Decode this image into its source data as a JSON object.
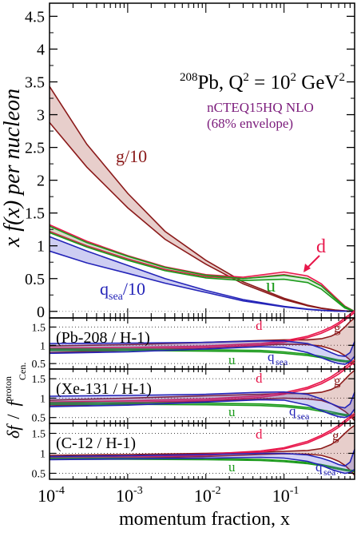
{
  "chart_data": {
    "type": "line",
    "xlabel": "momentum fraction, x",
    "x_scale": "log",
    "xlim": [
      0.0001,
      0.8
    ],
    "x_ticks": [
      {
        "value": 0.0001,
        "base": "10",
        "exp": "-4"
      },
      {
        "value": 0.001,
        "base": "10",
        "exp": "-3"
      },
      {
        "value": 0.01,
        "base": "10",
        "exp": "-2"
      },
      {
        "value": 0.1,
        "base": "10",
        "exp": "-1"
      }
    ],
    "main": {
      "ylabel": "x f(x) per nucleon",
      "ylim": [
        -0.1,
        4.7
      ],
      "y_ticks": [
        "0",
        "0.5",
        "1",
        "1.5",
        "2",
        "2.5",
        "3",
        "3.5",
        "4",
        "4.5"
      ],
      "title": {
        "prefix": "208",
        "pb": "Pb, Q",
        "q2": "2",
        "eq": " = 10",
        "p2": "2",
        "unit": " GeV",
        "u2": "2"
      },
      "subtitle1": "nCTEQ15HQ NLO",
      "subtitle2": "(68% envelope)",
      "labels": {
        "gluon": "g/10",
        "d": "d",
        "u": "u",
        "qsea_q": "q",
        "qsea_sub": "sea",
        "qsea_rest": "/10"
      },
      "series": [
        {
          "key": "g10",
          "color": "#8b1a1a",
          "fill": "rgba(170,80,70,0.28)",
          "x": [
            0.0001,
            0.0003,
            0.001,
            0.003,
            0.01,
            0.03,
            0.1,
            0.2,
            0.3,
            0.45,
            0.6,
            0.8
          ],
          "upper": [
            3.43,
            2.55,
            1.8,
            1.22,
            0.78,
            0.45,
            0.2,
            0.095,
            0.05,
            0.02,
            0.008,
            0.0
          ],
          "lower": [
            2.88,
            2.2,
            1.58,
            1.1,
            0.72,
            0.42,
            0.18,
            0.085,
            0.045,
            0.018,
            0.006,
            0.0
          ]
        },
        {
          "key": "d",
          "color": "#e8174b",
          "fill": "rgba(232,23,75,0.12)",
          "x": [
            0.0001,
            0.0003,
            0.001,
            0.003,
            0.01,
            0.03,
            0.1,
            0.2,
            0.3,
            0.45,
            0.6,
            0.8
          ],
          "upper": [
            1.32,
            1.07,
            0.85,
            0.68,
            0.56,
            0.52,
            0.6,
            0.54,
            0.42,
            0.22,
            0.08,
            0.0
          ],
          "lower": [
            1.22,
            1.0,
            0.8,
            0.64,
            0.53,
            0.5,
            0.56,
            0.5,
            0.39,
            0.2,
            0.07,
            0.0
          ]
        },
        {
          "key": "u",
          "color": "#1a9a1a",
          "fill": "rgba(26,154,26,0.15)",
          "x": [
            0.0001,
            0.0003,
            0.001,
            0.003,
            0.01,
            0.03,
            0.1,
            0.2,
            0.3,
            0.45,
            0.6,
            0.8
          ],
          "upper": [
            1.3,
            1.05,
            0.84,
            0.67,
            0.55,
            0.5,
            0.55,
            0.5,
            0.39,
            0.2,
            0.07,
            0.0
          ],
          "lower": [
            1.2,
            0.98,
            0.78,
            0.62,
            0.51,
            0.47,
            0.49,
            0.44,
            0.34,
            0.17,
            0.05,
            0.0
          ]
        },
        {
          "key": "qsea10",
          "color": "#2424b8",
          "fill": "rgba(80,80,210,0.28)",
          "x": [
            0.0001,
            0.0003,
            0.001,
            0.003,
            0.01,
            0.03,
            0.1,
            0.2,
            0.3,
            0.45,
            0.6,
            0.8
          ],
          "upper": [
            1.14,
            0.92,
            0.7,
            0.5,
            0.32,
            0.18,
            0.075,
            0.035,
            0.018,
            0.006,
            0.002,
            0.0
          ],
          "lower": [
            0.92,
            0.74,
            0.58,
            0.43,
            0.29,
            0.16,
            0.068,
            0.03,
            0.015,
            0.005,
            0.001,
            0.0
          ]
        }
      ]
    },
    "ratio": {
      "ylabel_a": "δf",
      "ylabel_sep": "/",
      "ylabel_b": "f",
      "ylabel_b_sup": "proton",
      "ylabel_b_sub": "Cen.",
      "ylim": [
        0.35,
        1.75
      ],
      "y_ticks": [
        "0.5",
        "1",
        "1.5"
      ],
      "dotted_lines": [
        0.5,
        1.0,
        1.5
      ],
      "panels": [
        {
          "label": "(Pb-208 / H-1)",
          "text": {
            "d": "d",
            "g": "g",
            "u": "u",
            "q": "q",
            "sea": "sea"
          },
          "series": [
            {
              "key": "g",
              "color": "#8b1a1a",
              "fill": "rgba(170,80,70,0.28)",
              "x": [
                0.0001,
                0.001,
                0.01,
                0.05,
                0.1,
                0.2,
                0.3,
                0.4,
                0.5,
                0.6,
                0.7,
                0.8
              ],
              "upper": [
                0.98,
                1.02,
                1.08,
                1.13,
                1.15,
                1.15,
                1.18,
                1.25,
                1.35,
                1.5,
                1.65,
                1.75
              ],
              "lower": [
                0.8,
                0.86,
                0.93,
                1.0,
                1.03,
                1.02,
                0.98,
                0.9,
                0.82,
                0.72,
                0.6,
                0.45
              ]
            },
            {
              "key": "d",
              "color": "#e8174b",
              "fill": "rgba(232,23,75,0.10)",
              "x": [
                0.0001,
                0.001,
                0.01,
                0.05,
                0.1,
                0.2,
                0.3,
                0.4,
                0.5,
                0.6,
                0.7,
                0.8
              ],
              "upper": [
                0.92,
                0.94,
                0.98,
                1.05,
                1.12,
                1.25,
                1.38,
                1.5,
                1.62,
                1.75,
                1.85,
                1.95
              ],
              "lower": [
                0.88,
                0.9,
                0.94,
                1.01,
                1.08,
                1.21,
                1.33,
                1.45,
                1.57,
                1.69,
                1.8,
                1.9
              ]
            },
            {
              "key": "u",
              "color": "#1a9a1a",
              "fill": "rgba(26,154,26,0.12)",
              "x": [
                0.0001,
                0.001,
                0.01,
                0.05,
                0.1,
                0.2,
                0.3,
                0.4,
                0.5,
                0.6,
                0.7,
                0.8
              ],
              "upper": [
                0.9,
                0.9,
                0.88,
                0.86,
                0.82,
                0.76,
                0.7,
                0.64,
                0.6,
                0.58,
                0.57,
                0.56
              ],
              "lower": [
                0.86,
                0.86,
                0.84,
                0.82,
                0.78,
                0.72,
                0.66,
                0.61,
                0.57,
                0.55,
                0.54,
                0.53
              ]
            },
            {
              "key": "qsea",
              "color": "#2424b8",
              "fill": "rgba(80,80,210,0.25)",
              "x": [
                0.0001,
                0.001,
                0.01,
                0.05,
                0.1,
                0.2,
                0.3,
                0.4,
                0.5,
                0.6,
                0.7,
                0.8
              ],
              "upper": [
                1.05,
                1.06,
                1.08,
                1.12,
                1.12,
                1.05,
                0.92,
                0.8,
                0.72,
                0.7,
                0.8,
                1.1
              ],
              "lower": [
                0.78,
                0.82,
                0.9,
                0.96,
                0.94,
                0.8,
                0.66,
                0.56,
                0.5,
                0.48,
                0.55,
                0.7
              ]
            }
          ]
        },
        {
          "label": "(Xe-131 / H-1)",
          "text": {
            "d": "d",
            "g": "g",
            "u": "u",
            "q": "q",
            "sea": "sea"
          },
          "series": [
            {
              "key": "g",
              "color": "#8b1a1a",
              "fill": "rgba(170,80,70,0.28)",
              "x": [
                0.0001,
                0.001,
                0.01,
                0.05,
                0.1,
                0.2,
                0.3,
                0.4,
                0.5,
                0.6,
                0.7,
                0.8
              ],
              "upper": [
                0.95,
                1.0,
                1.06,
                1.1,
                1.12,
                1.12,
                1.15,
                1.22,
                1.32,
                1.48,
                1.62,
                1.72
              ],
              "lower": [
                0.8,
                0.86,
                0.92,
                0.98,
                1.0,
                0.98,
                0.94,
                0.86,
                0.76,
                0.66,
                0.55,
                0.42
              ]
            },
            {
              "key": "d",
              "color": "#e8174b",
              "fill": "rgba(232,23,75,0.10)",
              "x": [
                0.0001,
                0.001,
                0.01,
                0.05,
                0.1,
                0.2,
                0.3,
                0.4,
                0.5,
                0.6,
                0.7,
                0.8
              ],
              "upper": [
                0.9,
                0.93,
                0.98,
                1.06,
                1.14,
                1.28,
                1.42,
                1.55,
                1.68,
                1.8,
                1.9,
                1.98
              ],
              "lower": [
                0.86,
                0.89,
                0.94,
                1.02,
                1.1,
                1.24,
                1.37,
                1.5,
                1.62,
                1.74,
                1.84,
                1.92
              ]
            },
            {
              "key": "u",
              "color": "#1a9a1a",
              "fill": "rgba(26,154,26,0.12)",
              "x": [
                0.0001,
                0.001,
                0.01,
                0.05,
                0.1,
                0.2,
                0.3,
                0.4,
                0.5,
                0.6,
                0.7,
                0.8
              ],
              "upper": [
                0.88,
                0.88,
                0.87,
                0.85,
                0.82,
                0.76,
                0.7,
                0.65,
                0.61,
                0.58,
                0.57,
                0.56
              ],
              "lower": [
                0.84,
                0.84,
                0.83,
                0.81,
                0.78,
                0.72,
                0.66,
                0.61,
                0.58,
                0.55,
                0.54,
                0.53
              ]
            },
            {
              "key": "qsea",
              "color": "#2424b8",
              "fill": "rgba(80,80,210,0.25)",
              "x": [
                0.0001,
                0.001,
                0.01,
                0.05,
                0.1,
                0.2,
                0.3,
                0.4,
                0.5,
                0.6,
                0.7,
                0.8
              ],
              "upper": [
                1.05,
                1.07,
                1.1,
                1.15,
                1.16,
                1.1,
                0.98,
                0.86,
                0.78,
                0.75,
                0.85,
                1.15
              ],
              "lower": [
                0.78,
                0.82,
                0.9,
                0.96,
                0.95,
                0.82,
                0.68,
                0.58,
                0.52,
                0.5,
                0.56,
                0.72
              ]
            }
          ]
        },
        {
          "label": "(C-12 / H-1)",
          "text": {
            "d": "d",
            "g": "g",
            "u": "u",
            "q": "q",
            "sea": "sea"
          },
          "series": [
            {
              "key": "g",
              "color": "#8b1a1a",
              "fill": "rgba(170,80,70,0.28)",
              "x": [
                0.0001,
                0.001,
                0.01,
                0.05,
                0.1,
                0.2,
                0.3,
                0.4,
                0.5,
                0.6,
                0.7,
                0.8
              ],
              "upper": [
                0.95,
                0.97,
                1.0,
                1.03,
                1.05,
                1.07,
                1.12,
                1.22,
                1.35,
                1.5,
                1.62,
                1.7
              ],
              "lower": [
                0.85,
                0.88,
                0.92,
                0.97,
                0.99,
                0.98,
                0.95,
                0.88,
                0.8,
                0.7,
                0.58,
                0.45
              ]
            },
            {
              "key": "d",
              "color": "#e8174b",
              "fill": "rgba(232,23,75,0.10)",
              "x": [
                0.0001,
                0.001,
                0.01,
                0.05,
                0.1,
                0.2,
                0.3,
                0.4,
                0.5,
                0.6,
                0.7,
                0.8
              ],
              "upper": [
                0.9,
                0.93,
                0.98,
                1.06,
                1.14,
                1.3,
                1.45,
                1.58,
                1.7,
                1.82,
                1.92,
                2.0
              ],
              "lower": [
                0.87,
                0.9,
                0.95,
                1.03,
                1.11,
                1.26,
                1.41,
                1.53,
                1.65,
                1.77,
                1.87,
                1.95
              ]
            },
            {
              "key": "u",
              "color": "#1a9a1a",
              "fill": "rgba(26,154,26,0.12)",
              "x": [
                0.0001,
                0.001,
                0.01,
                0.05,
                0.1,
                0.2,
                0.3,
                0.4,
                0.5,
                0.6,
                0.7,
                0.8
              ],
              "upper": [
                0.88,
                0.88,
                0.87,
                0.85,
                0.82,
                0.77,
                0.72,
                0.67,
                0.63,
                0.6,
                0.58,
                0.57
              ],
              "lower": [
                0.85,
                0.85,
                0.84,
                0.82,
                0.79,
                0.74,
                0.69,
                0.64,
                0.6,
                0.57,
                0.55,
                0.54
              ]
            },
            {
              "key": "qsea",
              "color": "#2424b8",
              "fill": "rgba(80,80,210,0.25)",
              "x": [
                0.0001,
                0.001,
                0.01,
                0.05,
                0.1,
                0.2,
                0.3,
                0.4,
                0.5,
                0.6,
                0.7,
                0.8
              ],
              "upper": [
                0.92,
                0.94,
                0.97,
                1.0,
                1.0,
                0.96,
                0.88,
                0.8,
                0.72,
                0.68,
                0.78,
                1.1
              ],
              "lower": [
                0.84,
                0.86,
                0.88,
                0.9,
                0.88,
                0.8,
                0.7,
                0.6,
                0.54,
                0.5,
                0.52,
                0.6
              ]
            }
          ]
        }
      ]
    }
  }
}
